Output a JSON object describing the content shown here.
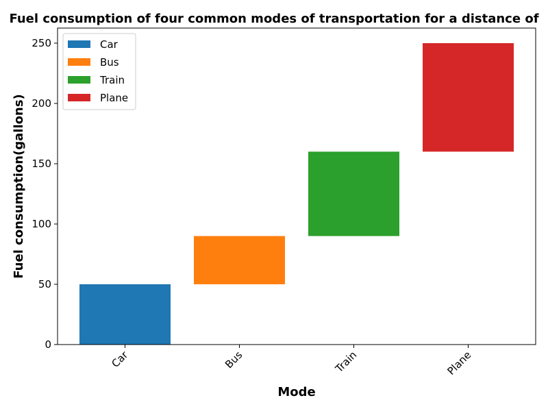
{
  "chart_data": {
    "type": "bar",
    "title": "Fuel consumption of four common modes of transportation for a distance of",
    "xlabel": "Mode",
    "ylabel": "Fuel consumption(gallons)",
    "categories": [
      "Car",
      "Bus",
      "Train",
      "Plane"
    ],
    "bars": [
      {
        "name": "Car",
        "bottom": 0,
        "top": 50,
        "color": "#1f77b4"
      },
      {
        "name": "Bus",
        "bottom": 50,
        "top": 90,
        "color": "#ff7f0e"
      },
      {
        "name": "Train",
        "bottom": 90,
        "top": 160,
        "color": "#2ca02c"
      },
      {
        "name": "Plane",
        "bottom": 160,
        "top": 250,
        "color": "#d62728"
      }
    ],
    "yticks": [
      0,
      50,
      100,
      150,
      200,
      250
    ],
    "ylim": [
      0,
      262.5
    ],
    "legend": [
      "Car",
      "Bus",
      "Train",
      "Plane"
    ],
    "legend_position": "top-left",
    "grid": false
  }
}
